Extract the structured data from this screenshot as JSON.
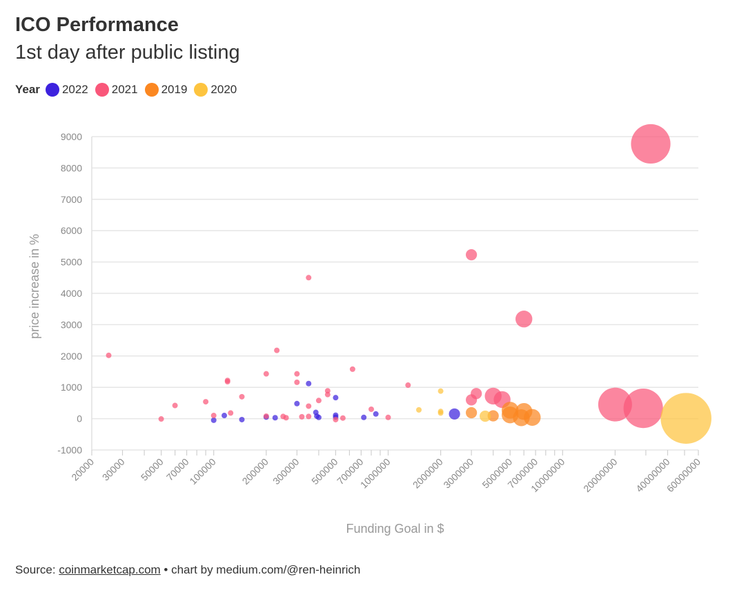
{
  "header": {
    "title": "ICO Performance",
    "subtitle": "1st day after public listing"
  },
  "legend": {
    "title": "Year",
    "items": [
      {
        "label": "2022",
        "color": "#3d22de"
      },
      {
        "label": "2021",
        "color": "#f9577a"
      },
      {
        "label": "2019",
        "color": "#fb8721"
      },
      {
        "label": "2020",
        "color": "#fdc43f"
      }
    ]
  },
  "source": {
    "prefix": "Source: ",
    "link": "coinmarketcap.com",
    "suffix": " • chart by medium.com/@ren-heinrich"
  },
  "chart_data": {
    "type": "scatter",
    "xlabel": "Funding Goal in $",
    "ylabel": "price increase in %",
    "xscale": "log",
    "xlim": [
      20000,
      60000000
    ],
    "ylim": [
      -1000,
      9000
    ],
    "xticks": [
      "20000",
      "30000",
      "50000",
      "70000",
      "100000",
      "200000",
      "300000",
      "500000",
      "700000",
      "1000000",
      "2000000",
      "3000000",
      "5000000",
      "7000000",
      "10000000",
      "20000000",
      "40000000",
      "60000000"
    ],
    "yticks": [
      "-1000",
      "0",
      "1000",
      "2000",
      "3000",
      "4000",
      "5000",
      "6000",
      "7000",
      "8000",
      "9000"
    ],
    "grid": "horizontal",
    "legend_position": "top-left",
    "series": [
      {
        "name": "2022",
        "color": "#3d22de",
        "points": [
          {
            "x": 100000,
            "y": -50,
            "size": 1
          },
          {
            "x": 115000,
            "y": 100,
            "size": 1
          },
          {
            "x": 145000,
            "y": -30,
            "size": 1
          },
          {
            "x": 200000,
            "y": 50,
            "size": 1
          },
          {
            "x": 225000,
            "y": 30,
            "size": 1
          },
          {
            "x": 300000,
            "y": 480,
            "size": 1
          },
          {
            "x": 350000,
            "y": 1120,
            "size": 1
          },
          {
            "x": 385000,
            "y": 200,
            "size": 1
          },
          {
            "x": 390000,
            "y": 80,
            "size": 1
          },
          {
            "x": 400000,
            "y": 40,
            "size": 1
          },
          {
            "x": 500000,
            "y": 670,
            "size": 1
          },
          {
            "x": 500000,
            "y": 110,
            "size": 1
          },
          {
            "x": 500000,
            "y": 50,
            "size": 1
          },
          {
            "x": 725000,
            "y": 40,
            "size": 1
          },
          {
            "x": 850000,
            "y": 150,
            "size": 1
          },
          {
            "x": 2400000,
            "y": 150,
            "size": 2
          }
        ]
      },
      {
        "name": "2021",
        "color": "#f9577a",
        "points": [
          {
            "x": 25000,
            "y": 2020,
            "size": 1
          },
          {
            "x": 50000,
            "y": -10,
            "size": 1
          },
          {
            "x": 60000,
            "y": 420,
            "size": 1
          },
          {
            "x": 90000,
            "y": 540,
            "size": 1
          },
          {
            "x": 100000,
            "y": 100,
            "size": 1
          },
          {
            "x": 120000,
            "y": 1220,
            "size": 1
          },
          {
            "x": 120000,
            "y": 1180,
            "size": 1
          },
          {
            "x": 125000,
            "y": 180,
            "size": 1
          },
          {
            "x": 145000,
            "y": 700,
            "size": 1
          },
          {
            "x": 200000,
            "y": 1430,
            "size": 1
          },
          {
            "x": 200000,
            "y": 80,
            "size": 1
          },
          {
            "x": 230000,
            "y": 2180,
            "size": 1
          },
          {
            "x": 250000,
            "y": 70,
            "size": 1
          },
          {
            "x": 260000,
            "y": 30,
            "size": 1
          },
          {
            "x": 300000,
            "y": 1430,
            "size": 1
          },
          {
            "x": 300000,
            "y": 1160,
            "size": 1
          },
          {
            "x": 320000,
            "y": 60,
            "size": 1
          },
          {
            "x": 350000,
            "y": 4500,
            "size": 1
          },
          {
            "x": 350000,
            "y": 400,
            "size": 1
          },
          {
            "x": 350000,
            "y": 70,
            "size": 1
          },
          {
            "x": 400000,
            "y": 580,
            "size": 1
          },
          {
            "x": 450000,
            "y": 890,
            "size": 1
          },
          {
            "x": 450000,
            "y": 770,
            "size": 1
          },
          {
            "x": 500000,
            "y": -30,
            "size": 1
          },
          {
            "x": 550000,
            "y": 20,
            "size": 1
          },
          {
            "x": 625000,
            "y": 1580,
            "size": 1
          },
          {
            "x": 800000,
            "y": 300,
            "size": 1
          },
          {
            "x": 1000000,
            "y": 40,
            "size": 1
          },
          {
            "x": 1300000,
            "y": 1070,
            "size": 1
          },
          {
            "x": 3000000,
            "y": 5230,
            "size": 2
          },
          {
            "x": 3000000,
            "y": 600,
            "size": 2
          },
          {
            "x": 3200000,
            "y": 800,
            "size": 2
          },
          {
            "x": 4000000,
            "y": 720,
            "size": 3
          },
          {
            "x": 4500000,
            "y": 610,
            "size": 3
          },
          {
            "x": 6000000,
            "y": 3180,
            "size": 3
          },
          {
            "x": 20000000,
            "y": 450,
            "size": 6
          },
          {
            "x": 29000000,
            "y": 330,
            "size": 7
          },
          {
            "x": 32000000,
            "y": 8770,
            "size": 7
          }
        ]
      },
      {
        "name": "2019",
        "color": "#fb8721",
        "points": [
          {
            "x": 3000000,
            "y": 190,
            "size": 2
          },
          {
            "x": 4000000,
            "y": 90,
            "size": 2
          },
          {
            "x": 5000000,
            "y": 120,
            "size": 3
          },
          {
            "x": 5000000,
            "y": 270,
            "size": 3
          },
          {
            "x": 5800000,
            "y": 30,
            "size": 3
          },
          {
            "x": 6000000,
            "y": 230,
            "size": 3
          },
          {
            "x": 6700000,
            "y": 40,
            "size": 3
          }
        ]
      },
      {
        "name": "2020",
        "color": "#fdc43f",
        "points": [
          {
            "x": 1500000,
            "y": 280,
            "size": 1
          },
          {
            "x": 2000000,
            "y": 880,
            "size": 1
          },
          {
            "x": 2000000,
            "y": 230,
            "size": 1
          },
          {
            "x": 2000000,
            "y": 180,
            "size": 1
          },
          {
            "x": 3600000,
            "y": 80,
            "size": 2
          },
          {
            "x": 51000000,
            "y": 10,
            "size": 9
          }
        ]
      }
    ]
  }
}
